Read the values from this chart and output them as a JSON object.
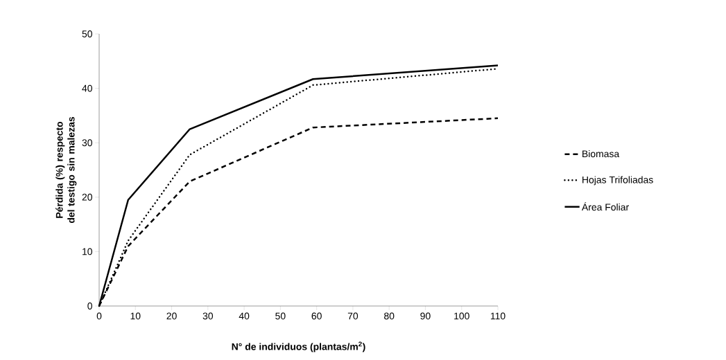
{
  "chart_data": {
    "type": "line",
    "xlabel": "N° de individuos (plantas/m$^{2}$)",
    "ylabel": "Pérdida (%) respecto del testigo sin malezas",
    "x": [
      0,
      8,
      25,
      59,
      110
    ],
    "series": [
      {
        "name": "Biomasa",
        "color": "#000000",
        "line_style": "dashed",
        "values": [
          0,
          11,
          22.9,
          32.8,
          34.5
        ]
      },
      {
        "name": "Hojas Trifoliadas",
        "color": "#000000",
        "line_style": "dotted",
        "values": [
          0,
          12,
          27.8,
          40.6,
          43.6
        ]
      },
      {
        "name": "Área Foliar",
        "color": "#000000",
        "line_style": "solid",
        "values": [
          0,
          19.5,
          32.5,
          41.7,
          44.2
        ]
      }
    ],
    "xlim": [
      0,
      110
    ],
    "ylim": [
      0,
      50
    ],
    "xticks": [
      0,
      10,
      20,
      30,
      40,
      50,
      60,
      70,
      80,
      90,
      100,
      110
    ],
    "yticks": [
      0,
      10,
      20,
      30,
      40,
      50
    ],
    "grid": false,
    "legend": "right",
    "marker": "none"
  }
}
